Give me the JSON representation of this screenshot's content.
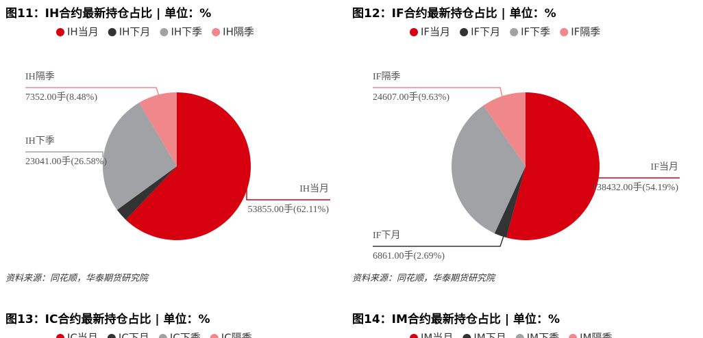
{
  "chart_data": [
    {
      "type": "pie",
      "title": "图11：IH合约最新持仓占比 | 单位：%",
      "categories": [
        "IH当月",
        "IH下月",
        "IH下季",
        "IH隔季"
      ],
      "values": [
        62.11,
        2.83,
        26.58,
        8.48
      ],
      "value_labels": [
        "53855.00手(62.11%)",
        null,
        "23041.00手(26.58%)",
        "7352.00手(8.48%)"
      ],
      "colors": [
        "#d7000f",
        "#333333",
        "#a0a2a5",
        "#f0878a"
      ],
      "source": "资料来源：同花顺，华泰期货研究院"
    },
    {
      "type": "pie",
      "title": "图12：IF合约最新持仓占比 | 单位：%",
      "categories": [
        "IF当月",
        "IF下月",
        "IF下季",
        "IF隔季"
      ],
      "values": [
        54.19,
        2.69,
        33.49,
        9.63
      ],
      "value_labels": [
        "138432.00手(54.19%)",
        "6861.00手(2.69%)",
        null,
        "24607.00手(9.63%)"
      ],
      "colors": [
        "#d7000f",
        "#333333",
        "#a0a2a5",
        "#f0878a"
      ],
      "source": "资料来源：同花顺，华泰期货研究院"
    },
    {
      "type": "pie",
      "title": "图13：IC合约最新持仓占比 | 单位：%",
      "categories": [
        "IC当月",
        "IC下月",
        "IC下季",
        "IC隔季"
      ],
      "colors": [
        "#d7000f",
        "#333333",
        "#a0a2a5",
        "#f0878a"
      ]
    },
    {
      "type": "pie",
      "title": "图14：IM合约最新持仓占比 | 单位：%",
      "categories": [
        "IM当月",
        "IM下月",
        "IM下季",
        "IM隔季"
      ],
      "colors": [
        "#d7000f",
        "#333333",
        "#a0a2a5",
        "#f0878a"
      ]
    }
  ]
}
